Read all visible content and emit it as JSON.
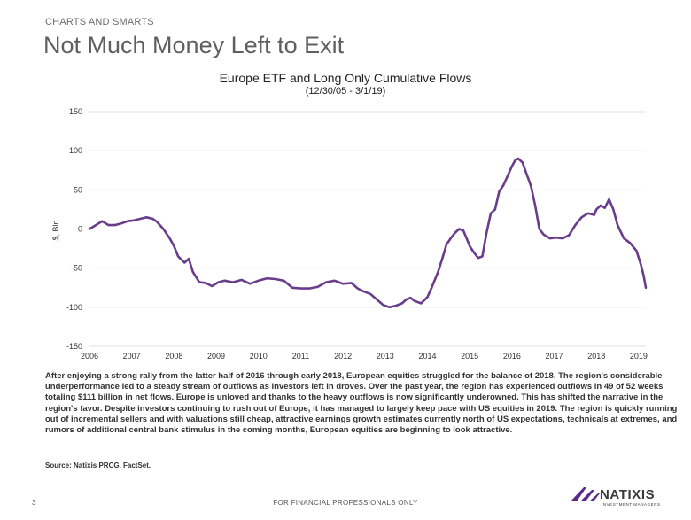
{
  "header": {
    "section_label": "CHARTS AND SMARTS",
    "title": "Not Much Money Left to Exit"
  },
  "chart_data": {
    "type": "line",
    "title": "Europe ETF and Long Only Cumulative Flows",
    "subtitle": "(12/30/05 - 3/1/19)",
    "ylabel": "$, Bln",
    "xlabel": "",
    "ylim": [
      -150,
      150
    ],
    "yticks": [
      150,
      100,
      50,
      0,
      -50,
      -100,
      -150
    ],
    "xlim": [
      2006,
      2019.17
    ],
    "xticks": [
      "2006",
      "2007",
      "2008",
      "2009",
      "2010",
      "2011",
      "2012",
      "2013",
      "2014",
      "2015",
      "2016",
      "2017",
      "2018",
      "2019"
    ],
    "grid": true,
    "line_color": "#6a3d8c",
    "series": [
      {
        "x": [
          2006.0,
          2006.15,
          2006.3,
          2006.45,
          2006.6,
          2006.75,
          2006.9,
          2007.05,
          2007.2,
          2007.35,
          2007.5,
          2007.6,
          2007.75,
          2007.9,
          2008.0,
          2008.1,
          2008.25,
          2008.35,
          2008.45,
          2008.6,
          2008.75,
          2008.9,
          2009.05,
          2009.2,
          2009.4,
          2009.6,
          2009.8,
          2010.0,
          2010.2,
          2010.4,
          2010.6,
          2010.8,
          2011.0,
          2011.2,
          2011.4,
          2011.6,
          2011.8,
          2012.0,
          2012.2,
          2012.35,
          2012.5,
          2012.65,
          2012.8,
          2012.95,
          2013.1,
          2013.25,
          2013.4,
          2013.5,
          2013.6,
          2013.7,
          2013.85,
          2014.0,
          2014.1,
          2014.25,
          2014.35,
          2014.45,
          2014.55,
          2014.65,
          2014.75,
          2014.85,
          2014.95,
          2015.0,
          2015.1,
          2015.2,
          2015.3,
          2015.4,
          2015.5,
          2015.6,
          2015.7,
          2015.8,
          2015.9,
          2016.0,
          2016.08,
          2016.15,
          2016.25,
          2016.35,
          2016.45,
          2016.55,
          2016.65,
          2016.75,
          2016.9,
          2017.05,
          2017.2,
          2017.35,
          2017.5,
          2017.65,
          2017.8,
          2017.95,
          2018.0,
          2018.1,
          2018.2,
          2018.3,
          2018.4,
          2018.5,
          2018.65,
          2018.8,
          2018.95,
          2019.05,
          2019.12,
          2019.17
        ],
        "values": [
          0,
          5,
          10,
          5,
          5,
          7,
          10,
          11,
          13,
          15,
          13,
          9,
          0,
          -12,
          -22,
          -35,
          -43,
          -38,
          -55,
          -68,
          -69,
          -73,
          -68,
          -66,
          -68,
          -65,
          -70,
          -66,
          -63,
          -64,
          -66,
          -75,
          -76,
          -76,
          -74,
          -68,
          -66,
          -70,
          -69,
          -76,
          -80,
          -83,
          -90,
          -97,
          -100,
          -98,
          -95,
          -90,
          -88,
          -92,
          -95,
          -87,
          -75,
          -55,
          -38,
          -20,
          -12,
          -5,
          0,
          -2,
          -15,
          -22,
          -30,
          -37,
          -35,
          -5,
          20,
          25,
          48,
          56,
          68,
          80,
          88,
          90,
          85,
          70,
          55,
          30,
          0,
          -7,
          -12,
          -11,
          -12,
          -8,
          5,
          15,
          20,
          18,
          25,
          30,
          27,
          38,
          25,
          5,
          -12,
          -18,
          -28,
          -45,
          -60,
          -75
        ]
      }
    ]
  },
  "commentary": "After enjoying a strong rally from the latter half of 2016 through early 2018, European equities struggled for the balance of 2018. The region's considerable underperformance led to a steady stream of outflows as investors left in droves. Over the past year, the region has experienced outflows in 49 of 52 weeks totaling $111 billion in net flows. Europe is unloved and thanks to the heavy outflows is now significantly underowned. This has shifted the narrative in the region's favor. Despite investors continuing to rush out of Europe, it has managed to largely keep pace with US equities in 2019. The region is quickly running out of incremental sellers and with valuations still cheap, attractive earnings growth estimates currently north of US expectations, technicals at extremes, and rumors of additional central bank stimulus in the coming months, European equities are beginning to look attractive.",
  "source": "Source: Natixis PRCG. FactSet.",
  "footer": {
    "page_number": "3",
    "note": "FOR FINANCIAL PROFESSIONALS ONLY"
  },
  "logo": {
    "name": "NATIXIS",
    "tagline": "INVESTMENT MANAGERS",
    "icon": "natixis-wing-icon",
    "color": "#5b2a86"
  }
}
